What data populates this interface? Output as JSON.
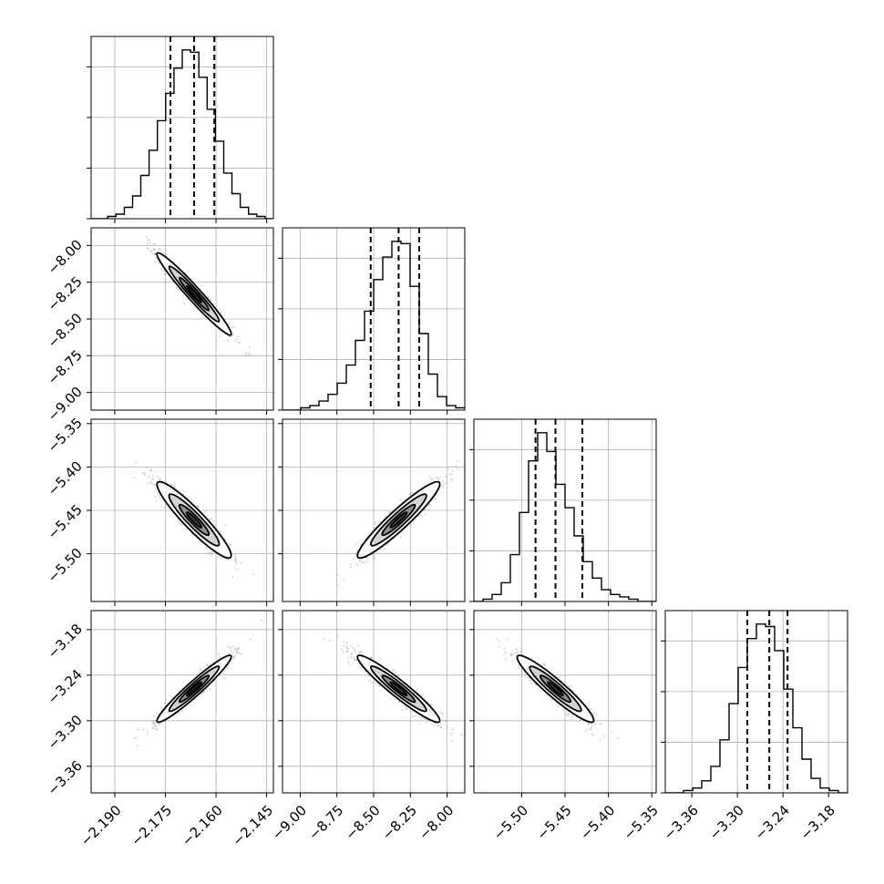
{
  "chart_data": {
    "type": "corner",
    "grid": true,
    "parameters": [
      {
        "range": [
          -2.197,
          -2.143
        ],
        "ticks": [
          -2.19,
          -2.175,
          -2.16,
          -2.145
        ],
        "tick_labels": [
          "−2.190",
          "−2.175",
          "−2.160",
          "−2.145"
        ],
        "quantiles": [
          -2.1735,
          -2.1665,
          -2.1605
        ],
        "histogram": [
          0,
          0,
          1,
          2,
          5,
          10,
          19,
          30,
          43,
          55,
          66,
          74,
          73,
          62,
          48,
          34,
          20,
          11,
          5,
          2,
          1,
          0
        ],
        "mean": -2.1665,
        "sd": 0.0055
      },
      {
        "range": [
          -9.12,
          -7.88
        ],
        "ticks": [
          -9.0,
          -8.75,
          -8.5,
          -8.25,
          -8.0
        ],
        "tick_labels": [
          "−9.00",
          "−8.75",
          "−8.50",
          "−8.25",
          "−8.00"
        ],
        "quantiles": [
          -8.52,
          -8.33,
          -8.19
        ],
        "histogram": [
          0,
          0,
          1,
          2,
          4,
          7,
          12,
          20,
          31,
          44,
          58,
          68,
          75,
          74,
          55,
          34,
          16,
          6,
          2,
          1
        ],
        "mean": -8.33,
        "sd": 0.14
      },
      {
        "range": [
          -5.555,
          -5.345
        ],
        "ticks": [
          -5.5,
          -5.45,
          -5.4,
          -5.35
        ],
        "tick_labels": [
          "−5.50",
          "−5.45",
          "−5.40",
          "−5.35"
        ],
        "quantiles": [
          -5.484,
          -5.461,
          -5.43
        ],
        "histogram": [
          0,
          1,
          3,
          8,
          20,
          38,
          60,
          72,
          64,
          50,
          40,
          28,
          17,
          10,
          5,
          3,
          2,
          1,
          0,
          0
        ],
        "mean": -5.461,
        "sd": 0.022
      },
      {
        "range": [
          -3.395,
          -3.155
        ],
        "ticks": [
          -3.36,
          -3.3,
          -3.24,
          -3.18
        ],
        "tick_labels": [
          "−3.36",
          "−3.30",
          "−3.24",
          "−3.18"
        ],
        "quantiles": [
          -3.287,
          -3.258,
          -3.234
        ],
        "histogram": [
          0,
          0,
          1,
          2,
          5,
          11,
          22,
          37,
          52,
          64,
          70,
          69,
          59,
          43,
          27,
          14,
          6,
          2,
          1,
          0
        ],
        "mean": -3.258,
        "sd": 0.022
      }
    ],
    "correlations": [
      [
        1,
        -0.97,
        -0.93,
        0.96
      ],
      [
        -0.97,
        1,
        0.94,
        -0.95
      ],
      [
        -0.93,
        0.94,
        1,
        -0.94
      ],
      [
        0.96,
        -0.95,
        -0.94,
        1
      ]
    ]
  }
}
